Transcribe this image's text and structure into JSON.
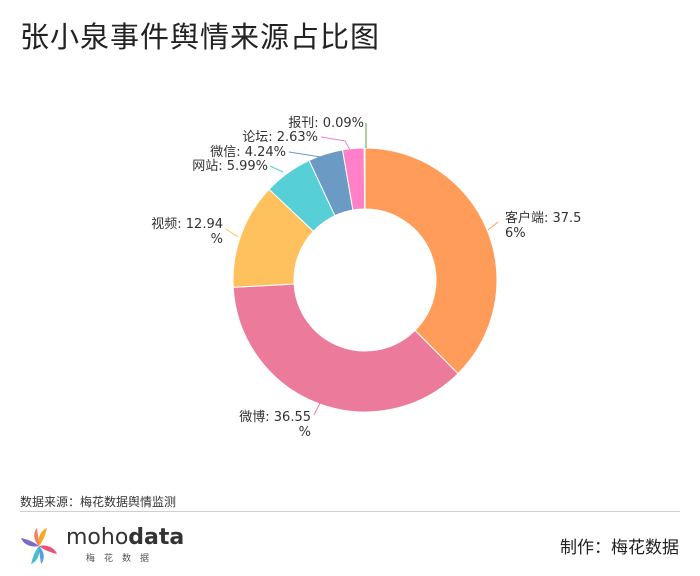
{
  "title": "张小泉事件舆情来源占比图",
  "source": "数据来源：梅花数据舆情监测",
  "brand": {
    "part1": "moho",
    "part2": "data",
    "subtitle": "梅花数据"
  },
  "credit": "制作：梅花数据",
  "chart_data": {
    "type": "pie",
    "donut": true,
    "legend": "none",
    "slices": [
      {
        "name": "客户端",
        "value": 37.56,
        "label_lines": [
          "客户端: 37.5",
          "6%"
        ],
        "color": "#FF9C5A"
      },
      {
        "name": "微博",
        "value": 36.55,
        "label_lines": [
          "微博: 36.55",
          "%"
        ],
        "color": "#EC7B9B"
      },
      {
        "name": "视频",
        "value": 12.94,
        "label_lines": [
          "视频: 12.94",
          "%"
        ],
        "color": "#FFC15E"
      },
      {
        "name": "网站",
        "value": 5.99,
        "label_lines": [
          "网站: 5.99%"
        ],
        "color": "#56D0D6"
      },
      {
        "name": "微信",
        "value": 4.24,
        "label_lines": [
          "微信: 4.24%"
        ],
        "color": "#6B9AC4"
      },
      {
        "name": "论坛",
        "value": 2.63,
        "label_lines": [
          "论坛: 2.63%"
        ],
        "color": "#FF7FC8"
      },
      {
        "name": "报刊",
        "value": 0.09,
        "label_lines": [
          "报刊: 0.09%"
        ],
        "color": "#5C9E3F"
      }
    ]
  }
}
